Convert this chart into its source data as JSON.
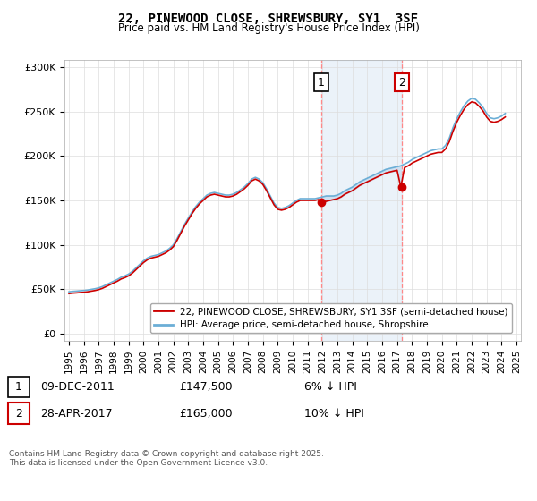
{
  "title": "22, PINEWOOD CLOSE, SHREWSBURY, SY1  3SF",
  "subtitle": "Price paid vs. HM Land Registry's House Price Index (HPI)",
  "yticks": [
    0,
    50000,
    100000,
    150000,
    200000,
    250000,
    300000
  ],
  "ytick_labels": [
    "£0",
    "£50K",
    "£100K",
    "£150K",
    "£200K",
    "£250K",
    "£300K"
  ],
  "xtick_years": [
    1995,
    1996,
    1997,
    1998,
    1999,
    2000,
    2001,
    2002,
    2003,
    2004,
    2005,
    2006,
    2007,
    2008,
    2009,
    2010,
    2011,
    2012,
    2013,
    2014,
    2015,
    2016,
    2017,
    2018,
    2019,
    2020,
    2021,
    2022,
    2023,
    2024,
    2025
  ],
  "hpi_color": "#6baed6",
  "price_color": "#cc0000",
  "shade_color": "#c6dbef",
  "marker1_x": 2011.92,
  "marker1_y": 147500,
  "marker2_x": 2017.33,
  "marker2_y": 165000,
  "shade_x1": 2011.92,
  "shade_x2": 2017.33,
  "legend_line1": "22, PINEWOOD CLOSE, SHREWSBURY, SY1 3SF (semi-detached house)",
  "legend_line2": "HPI: Average price, semi-detached house, Shropshire",
  "annotation1_label": "1",
  "annotation1_date": "09-DEC-2011",
  "annotation1_price": "£147,500",
  "annotation1_hpi": "6% ↓ HPI",
  "annotation2_label": "2",
  "annotation2_date": "28-APR-2017",
  "annotation2_price": "£165,000",
  "annotation2_hpi": "10% ↓ HPI",
  "footer": "Contains HM Land Registry data © Crown copyright and database right 2025.\nThis data is licensed under the Open Government Licence v3.0.",
  "shared_x": [
    1995.0,
    1995.25,
    1995.5,
    1995.75,
    1996.0,
    1996.25,
    1996.5,
    1996.75,
    1997.0,
    1997.25,
    1997.5,
    1997.75,
    1998.0,
    1998.25,
    1998.5,
    1998.75,
    1999.0,
    1999.25,
    1999.5,
    1999.75,
    2000.0,
    2000.25,
    2000.5,
    2000.75,
    2001.0,
    2001.25,
    2001.5,
    2001.75,
    2002.0,
    2002.25,
    2002.5,
    2002.75,
    2003.0,
    2003.25,
    2003.5,
    2003.75,
    2004.0,
    2004.25,
    2004.5,
    2004.75,
    2005.0,
    2005.25,
    2005.5,
    2005.75,
    2006.0,
    2006.25,
    2006.5,
    2006.75,
    2007.0,
    2007.25,
    2007.5,
    2007.75,
    2008.0,
    2008.25,
    2008.5,
    2008.75,
    2009.0,
    2009.25,
    2009.5,
    2009.75,
    2010.0,
    2010.25,
    2010.5,
    2010.75,
    2011.0,
    2011.25,
    2011.5,
    2011.75,
    2012.0,
    2012.25,
    2012.5,
    2012.75,
    2013.0,
    2013.25,
    2013.5,
    2013.75,
    2014.0,
    2014.25,
    2014.5,
    2014.75,
    2015.0,
    2015.25,
    2015.5,
    2015.75,
    2016.0,
    2016.25,
    2016.5,
    2016.75,
    2017.0,
    2017.25,
    2017.5,
    2017.75,
    2018.0,
    2018.25,
    2018.5,
    2018.75,
    2019.0,
    2019.25,
    2019.5,
    2019.75,
    2020.0,
    2020.25,
    2020.5,
    2020.75,
    2021.0,
    2021.25,
    2021.5,
    2021.75,
    2022.0,
    2022.25,
    2022.5,
    2022.75,
    2023.0,
    2023.25,
    2023.5,
    2023.75,
    2024.0,
    2024.25,
    2024.5,
    2024.75
  ],
  "hpi_data_y": [
    47000,
    47500,
    47800,
    48200,
    48500,
    49000,
    49800,
    50500,
    51500,
    53000,
    55000,
    57000,
    59000,
    61000,
    63500,
    65000,
    67000,
    70000,
    74000,
    78000,
    82000,
    85000,
    87000,
    88000,
    89000,
    91000,
    93000,
    96000,
    100000,
    107000,
    115000,
    123000,
    130000,
    137000,
    143000,
    148000,
    152000,
    156000,
    158000,
    159000,
    158000,
    157000,
    156000,
    156000,
    157000,
    159000,
    162000,
    165000,
    169000,
    174000,
    176000,
    174000,
    170000,
    163000,
    155000,
    147000,
    142000,
    141000,
    142000,
    144000,
    147000,
    150000,
    152000,
    152000,
    152000,
    152000,
    152000,
    153000,
    154000,
    155000,
    155000,
    155000,
    156000,
    158000,
    161000,
    163000,
    165000,
    168000,
    171000,
    173000,
    175000,
    177000,
    179000,
    181000,
    183000,
    185000,
    186000,
    187000,
    188000,
    189000,
    191000,
    193000,
    196000,
    198000,
    200000,
    202000,
    204000,
    206000,
    207000,
    208000,
    208000,
    212000,
    220000,
    232000,
    242000,
    250000,
    257000,
    262000,
    265000,
    264000,
    260000,
    255000,
    248000,
    243000,
    242000,
    243000,
    245000,
    248000
  ],
  "price_data_y": [
    45000,
    45500,
    45800,
    46200,
    46500,
    47000,
    47800,
    48500,
    49500,
    51000,
    53000,
    55000,
    57000,
    59000,
    61500,
    63000,
    65000,
    68000,
    72000,
    76000,
    80000,
    83000,
    85000,
    86000,
    87000,
    89000,
    91000,
    94000,
    98000,
    105000,
    113000,
    121000,
    128000,
    135000,
    141000,
    146000,
    150000,
    154000,
    156000,
    157000,
    156000,
    155000,
    154000,
    154000,
    155000,
    157000,
    160000,
    163000,
    167000,
    172000,
    174000,
    172000,
    168000,
    161000,
    153000,
    145000,
    140000,
    139000,
    140000,
    142000,
    145000,
    148000,
    150000,
    150000,
    150000,
    150000,
    150000,
    151000,
    147500,
    149000,
    150000,
    151000,
    152000,
    154000,
    157000,
    159000,
    161000,
    164000,
    167000,
    169000,
    171000,
    173000,
    175000,
    177000,
    179000,
    181000,
    182000,
    183000,
    184000,
    165000,
    187000,
    189000,
    192000,
    194000,
    196000,
    198000,
    200000,
    202000,
    203000,
    204000,
    204000,
    208000,
    216000,
    228000,
    238000,
    246000,
    253000,
    258000,
    261000,
    260000,
    256000,
    251000,
    244000,
    239000,
    238000,
    239000,
    241000,
    244000
  ]
}
